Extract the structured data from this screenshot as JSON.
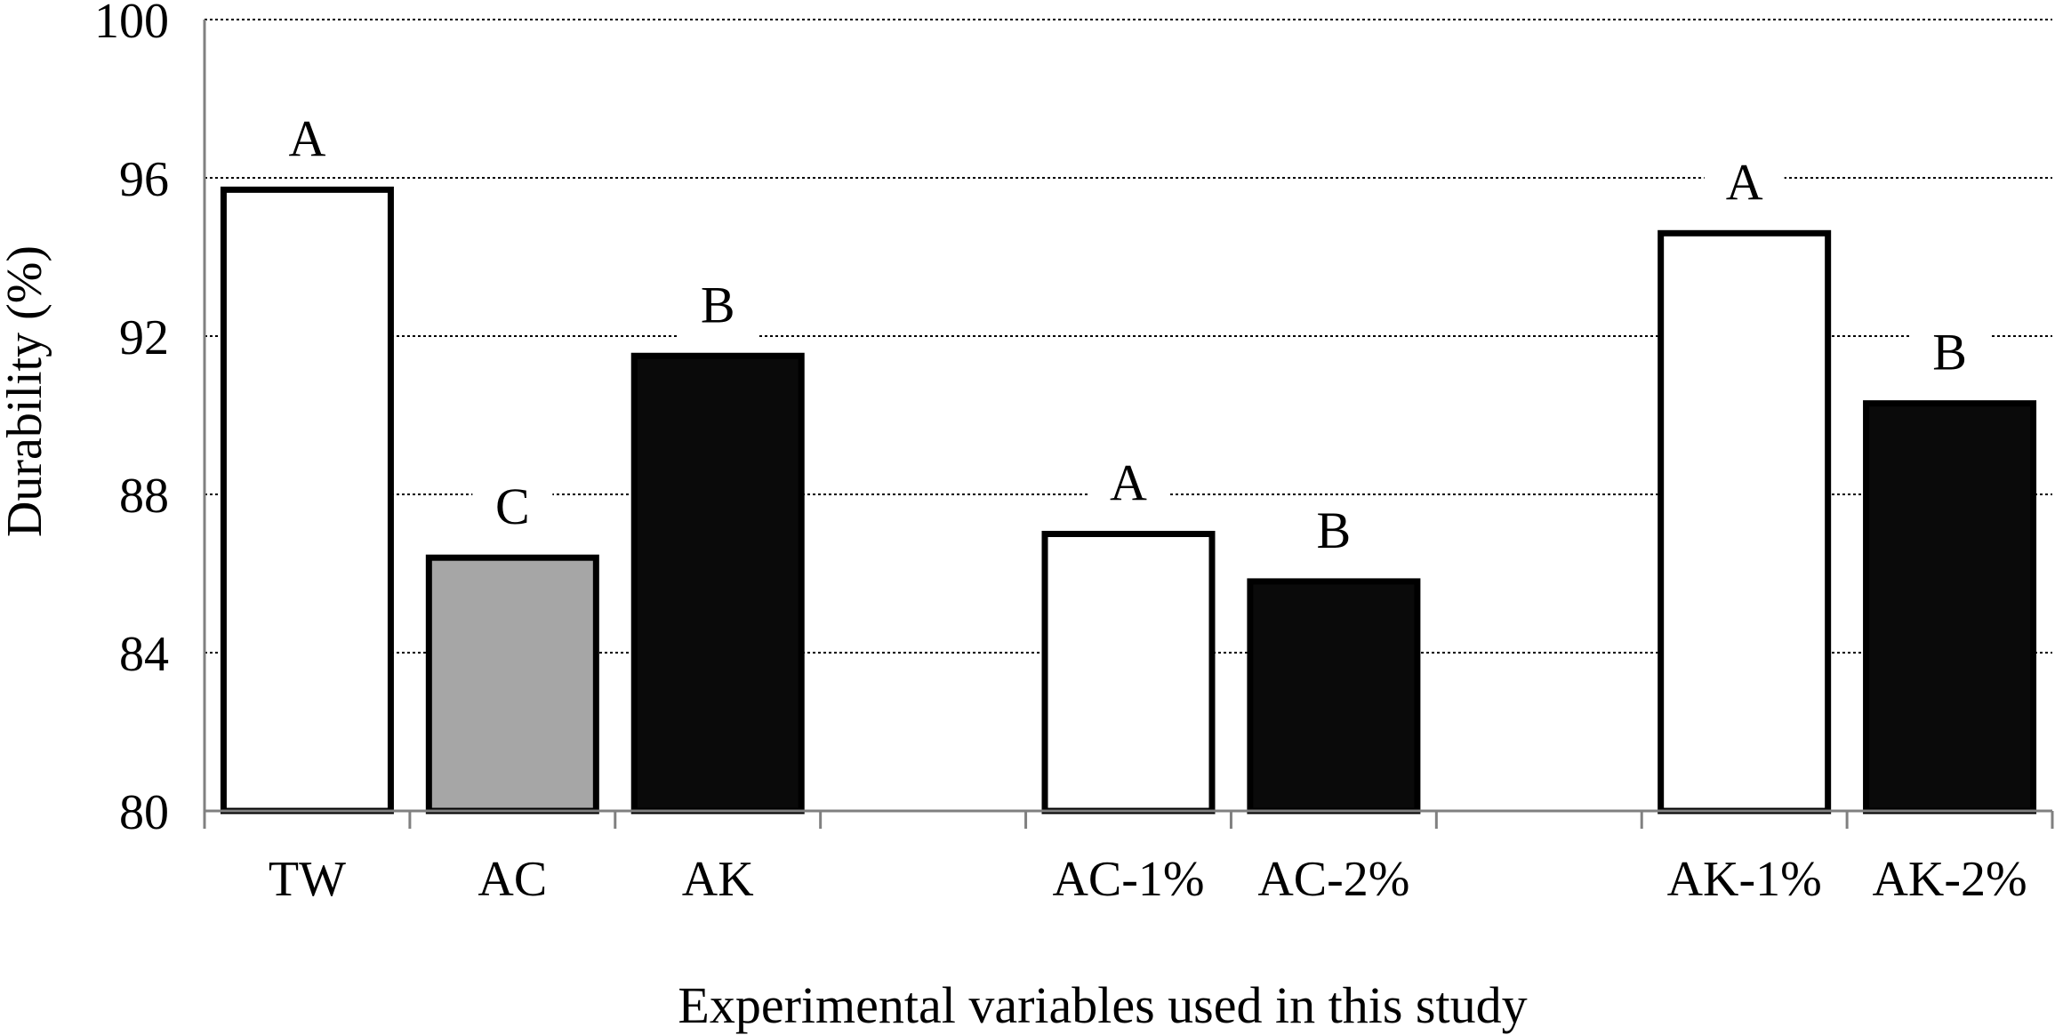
{
  "chart_data": {
    "type": "bar",
    "categories": [
      "TW",
      "AC",
      "AK",
      "",
      "AC-1%",
      "AC-2%",
      "",
      "AK-1%",
      "AK-2%"
    ],
    "values": [
      95.7,
      86.4,
      91.5,
      null,
      87.0,
      85.8,
      null,
      94.6,
      90.3
    ],
    "letters": [
      "A",
      "C",
      "B",
      "",
      "A",
      "B",
      "",
      "A",
      "B"
    ],
    "fills": [
      "#ffffff",
      "#a6a6a6",
      "#0a0a0a",
      "",
      "#ffffff",
      "#0a0a0a",
      "",
      "#ffffff",
      "#0a0a0a"
    ],
    "xlabel": "Experimental variables used in this study",
    "ylabel": "Durability (%)",
    "ylim": [
      80,
      100
    ],
    "yticks": [
      "80",
      "84",
      "88",
      "92",
      "96",
      "100"
    ],
    "grid": true
  }
}
